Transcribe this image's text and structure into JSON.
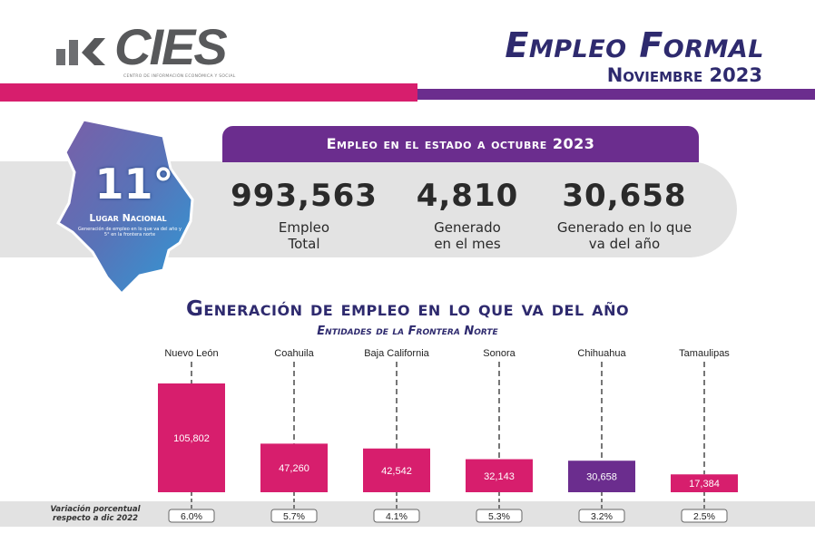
{
  "logo": {
    "text": "CIES",
    "subtitle": "CENTRO DE INFORMACIÓN ECONÓMICA Y SOCIAL"
  },
  "header": {
    "title": "Empleo Formal",
    "subtitle": "Noviembre 2023"
  },
  "colors": {
    "pink": "#d71e6d",
    "purple": "#6b2d8e",
    "navy": "#2e2a6e",
    "gray_band": "#e3e3e3"
  },
  "ranking": {
    "value": "11°",
    "label": "Lugar Nacional",
    "note": "Generación de empleo en lo que va del año y 5° en la frontera norte"
  },
  "stats": {
    "heading": "Empleo en el estado a octubre 2023",
    "items": [
      {
        "value": "993,563",
        "label_line1": "Empleo",
        "label_line2": "Total"
      },
      {
        "value": "4,810",
        "label_line1": "Generado",
        "label_line2": "en el mes"
      },
      {
        "value": "30,658",
        "label_line1": "Generado en lo que",
        "label_line2": "va del año"
      }
    ]
  },
  "chart_data": {
    "type": "bar",
    "title": "Generación de empleo en lo que va del año",
    "subtitle": "Entidades de la Frontera Norte",
    "categories": [
      "Nuevo León",
      "Coahuila",
      "Baja California",
      "Sonora",
      "Chihuahua",
      "Tamaulipas"
    ],
    "values": [
      105802,
      47260,
      42542,
      32143,
      30658,
      17384
    ],
    "value_labels": [
      "105,802",
      "47,260",
      "42,542",
      "32,143",
      "30,658",
      "17,384"
    ],
    "bar_colors": [
      "#d71e6d",
      "#d71e6d",
      "#d71e6d",
      "#d71e6d",
      "#6b2d8e",
      "#d71e6d"
    ],
    "variation_label": "Variación porcentual respecto a dic 2022",
    "variation": [
      "6.0%",
      "5.7%",
      "4.1%",
      "5.3%",
      "3.2%",
      "2.5%"
    ],
    "ylim": [
      0,
      105802
    ]
  }
}
